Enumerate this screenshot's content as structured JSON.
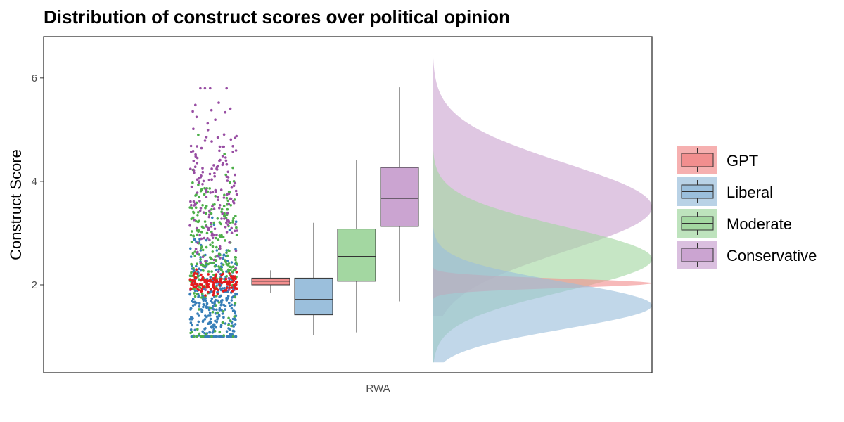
{
  "chart_data": {
    "type": "boxplot",
    "title": "Distribution of construct scores over political opinion",
    "xlabel": "",
    "ylabel": "Construct Score",
    "categories": [
      "RWA"
    ],
    "ylim": [
      0.3,
      6.8
    ],
    "yticks": [
      2,
      4,
      6
    ],
    "grid": false,
    "legend_position": "right",
    "series": [
      {
        "name": "GPT",
        "color": "#e41a1c",
        "fill": "#f28e8e",
        "box": {
          "min": 1.85,
          "q1": 2.0,
          "median": 2.07,
          "q3": 2.13,
          "max": 2.28
        },
        "points_range": [
          1.7,
          2.4
        ],
        "density_peak": 2.03,
        "density_sd": 0.09
      },
      {
        "name": "Liberal",
        "color": "#377eb8",
        "fill": "#9bbfdc",
        "box": {
          "min": 1.02,
          "q1": 1.42,
          "median": 1.72,
          "q3": 2.13,
          "max": 3.2
        },
        "points_range": [
          1.0,
          3.3
        ],
        "density_peak": 1.6,
        "density_sd": 0.45
      },
      {
        "name": "Moderate",
        "color": "#4daf4a",
        "fill": "#a3d7a1",
        "box": {
          "min": 1.08,
          "q1": 2.07,
          "median": 2.55,
          "q3": 3.08,
          "max": 4.42
        },
        "points_range": [
          1.0,
          4.9
        ],
        "density_peak": 2.5,
        "density_sd": 0.62
      },
      {
        "name": "Conservative",
        "color": "#984ea3",
        "fill": "#cba4d1",
        "box": {
          "min": 1.68,
          "q1": 3.13,
          "median": 3.67,
          "q3": 4.27,
          "max": 5.82
        },
        "points_range": [
          1.9,
          5.8
        ],
        "density_peak": 3.5,
        "density_sd": 0.85
      }
    ]
  }
}
